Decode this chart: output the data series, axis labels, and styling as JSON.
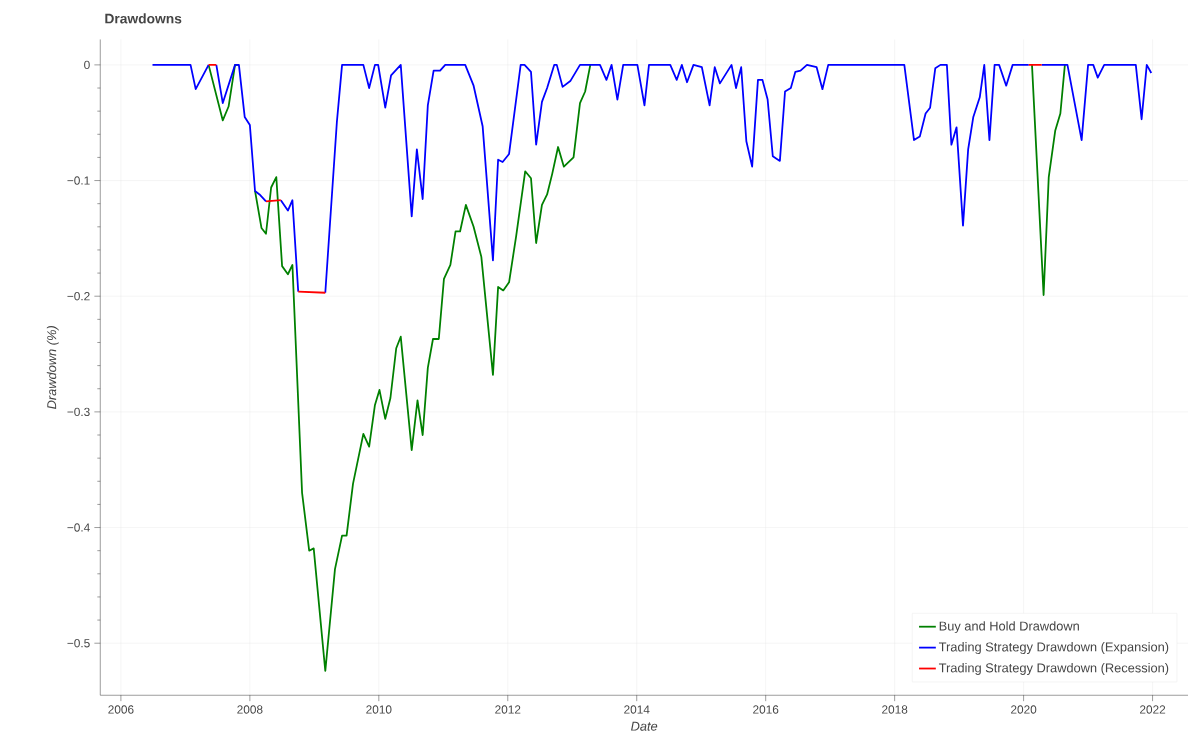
{
  "chart_data": {
    "type": "line",
    "title": "Drawdowns",
    "xlabel": "Date",
    "ylabel": "Drawdown (%)",
    "xlim": [
      2005.68,
      2022.55
    ],
    "ylim": [
      -0.545,
      0.022
    ],
    "xticks": [
      2006,
      2008,
      2010,
      2012,
      2014,
      2016,
      2018,
      2020,
      2022
    ],
    "yticks": [
      {
        "value": -0.5,
        "label": "−0.5"
      },
      {
        "value": -0.4,
        "label": "−0.4"
      },
      {
        "value": -0.3,
        "label": "−0.3"
      },
      {
        "value": -0.2,
        "label": "−0.2"
      },
      {
        "value": -0.1,
        "label": "−0.1"
      },
      0
    ],
    "grid": true,
    "legend": "bottom right",
    "line_style": "solid",
    "series": [
      {
        "name": "Buy and Hold Drawdown",
        "color": "#008000",
        "x": [
          2007.36,
          2007.58,
          2007.67,
          2007.77,
          2007.83,
          2007.92,
          2008.0,
          2008.08,
          2008.18,
          2008.25,
          2008.33,
          2008.41,
          2008.5,
          2008.59,
          2008.66,
          2008.81,
          2008.92,
          2008.99,
          2009.17,
          2009.32,
          2009.43,
          2009.5,
          2009.6,
          2009.76,
          2009.85,
          2009.94,
          2010.01,
          2010.1,
          2010.18,
          2010.27,
          2010.34,
          2010.51,
          2010.6,
          2010.68,
          2010.76,
          2010.84,
          2010.93,
          2011.01,
          2011.11,
          2011.19,
          2011.26,
          2011.35,
          2011.47,
          2011.59,
          2011.77,
          2011.85,
          2011.93,
          2012.02,
          2012.13,
          2012.27,
          2012.36,
          2012.44,
          2012.53,
          2012.61,
          2012.69,
          2012.78,
          2012.87,
          2013.02,
          2013.12,
          2013.2,
          2013.28,
          2016.0,
          2020.13,
          2020.31,
          2020.39,
          2020.49,
          2020.57,
          2020.64
        ],
        "values": [
          0,
          -0.048,
          -0.036,
          0,
          0,
          null,
          null,
          -0.109,
          -0.141,
          -0.146,
          -0.106,
          -0.097,
          -0.174,
          -0.181,
          -0.173,
          -0.37,
          -0.42,
          -0.418,
          -0.524,
          -0.436,
          -0.407,
          -0.407,
          -0.362,
          -0.319,
          -0.33,
          -0.294,
          -0.281,
          -0.306,
          -0.288,
          -0.245,
          -0.235,
          -0.333,
          -0.29,
          -0.32,
          -0.262,
          -0.237,
          -0.237,
          -0.185,
          -0.173,
          -0.144,
          -0.144,
          -0.121,
          -0.14,
          -0.166,
          -0.268,
          -0.192,
          -0.195,
          -0.188,
          -0.148,
          -0.092,
          -0.098,
          -0.154,
          -0.121,
          -0.112,
          -0.094,
          -0.071,
          -0.088,
          -0.08,
          -0.033,
          -0.023,
          0,
          null,
          0,
          -0.199,
          -0.097,
          -0.057,
          -0.042,
          0
        ]
      },
      {
        "name": "Trading Strategy Drawdown (Expansion)",
        "color": "#0000ff",
        "x": [
          2006.49,
          2007.08,
          2007.16,
          2007.36,
          2007.42,
          2007.48,
          2007.58,
          2007.77,
          2007.83,
          2007.92,
          2008.0,
          2008.08,
          2008.15,
          2008.25,
          2008.36,
          2008.48,
          2008.59,
          2008.66,
          2008.75,
          2008.96,
          2009.17,
          2009.35,
          2009.43,
          2009.76,
          2009.85,
          2009.94,
          2009.99,
          2010.1,
          2010.19,
          2010.34,
          2010.51,
          2010.59,
          2010.68,
          2010.76,
          2010.85,
          2010.95,
          2011.03,
          2011.34,
          2011.47,
          2011.61,
          2011.77,
          2011.85,
          2011.92,
          2012.02,
          2012.2,
          2012.26,
          2012.36,
          2012.44,
          2012.53,
          2012.61,
          2012.72,
          2012.76,
          2012.85,
          2012.97,
          2013.12,
          2013.43,
          2013.53,
          2013.61,
          2013.7,
          2013.79,
          2014.01,
          2014.12,
          2014.19,
          2014.52,
          2014.62,
          2014.7,
          2014.78,
          2014.88,
          2015.01,
          2015.13,
          2015.21,
          2015.29,
          2015.47,
          2015.54,
          2015.62,
          2015.7,
          2015.79,
          2015.88,
          2015.95,
          2016.03,
          2016.11,
          2016.22,
          2016.3,
          2016.39,
          2016.46,
          2016.54,
          2016.64,
          2016.79,
          2016.88,
          2016.97,
          2018.15,
          2018.3,
          2018.39,
          2018.48,
          2018.55,
          2018.63,
          2018.71,
          2018.81,
          2018.88,
          2018.96,
          2019.06,
          2019.14,
          2019.22,
          2019.32,
          2019.39,
          2019.47,
          2019.55,
          2019.62,
          2019.73,
          2019.83,
          2019.93,
          2020.08,
          2020.18,
          2020.28,
          2020.68,
          2020.9,
          2021.0,
          2021.08,
          2021.15,
          2021.25,
          2021.74,
          2021.83,
          2021.91,
          2021.98
        ],
        "values": [
          0,
          0,
          -0.021,
          0,
          null,
          0,
          -0.033,
          0,
          0,
          -0.045,
          -0.052,
          -0.109,
          -0.112,
          -0.118,
          null,
          -0.117,
          -0.126,
          -0.117,
          -0.196,
          null,
          -0.197,
          -0.049,
          0,
          0,
          -0.02,
          0,
          0,
          -0.037,
          -0.009,
          0,
          -0.131,
          -0.073,
          -0.116,
          -0.035,
          -0.005,
          -0.005,
          0,
          0,
          -0.018,
          -0.053,
          -0.169,
          -0.082,
          -0.084,
          -0.077,
          0,
          0,
          -0.006,
          -0.069,
          -0.032,
          -0.02,
          0,
          0,
          -0.019,
          -0.014,
          0,
          0,
          -0.013,
          0,
          -0.03,
          0,
          0,
          -0.035,
          0,
          0,
          -0.013,
          0,
          -0.015,
          0,
          -0.002,
          -0.035,
          -0.002,
          -0.016,
          0,
          -0.02,
          -0.002,
          -0.066,
          -0.088,
          -0.013,
          -0.013,
          -0.03,
          -0.079,
          -0.083,
          -0.023,
          -0.02,
          -0.006,
          -0.005,
          0,
          -0.002,
          -0.021,
          0,
          0,
          -0.065,
          -0.062,
          -0.042,
          -0.037,
          -0.003,
          0,
          0,
          -0.069,
          -0.054,
          -0.139,
          -0.073,
          -0.045,
          -0.028,
          0,
          -0.065,
          0,
          0,
          -0.018,
          0,
          0,
          0,
          null,
          0,
          0,
          -0.065,
          0,
          0,
          -0.011,
          0,
          0,
          -0.047,
          0,
          -0.007
        ]
      },
      {
        "name": "Trading Strategy Drawdown (Recession)",
        "color": "#ff0000",
        "x": [
          2007.36,
          2007.48,
          2007.5,
          2008.25,
          2008.48,
          2008.6,
          2008.75,
          2009.17,
          2009.3,
          2020.08,
          2020.28
        ],
        "values": [
          0,
          0,
          null,
          -0.118,
          -0.117,
          null,
          -0.196,
          -0.197,
          null,
          0,
          0
        ]
      }
    ]
  }
}
